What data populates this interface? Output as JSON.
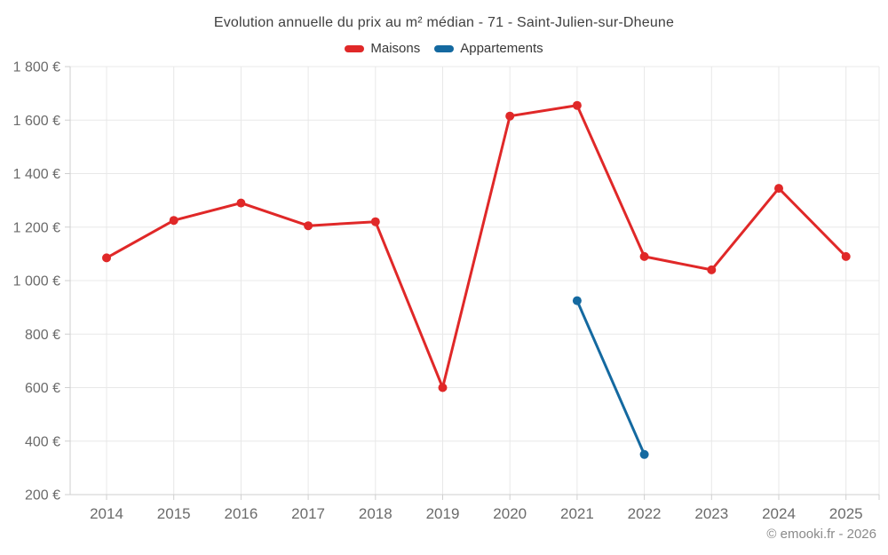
{
  "chart_data": {
    "type": "line",
    "title": "Evolution annuelle du prix au m² médian - 71 - Saint-Julien-sur-Dheune",
    "categories": [
      "2014",
      "2015",
      "2016",
      "2017",
      "2018",
      "2019",
      "2020",
      "2021",
      "2022",
      "2023",
      "2024",
      "2025"
    ],
    "series": [
      {
        "name": "Maisons",
        "color": "#e02828",
        "values": [
          1085,
          1225,
          1290,
          1205,
          1220,
          600,
          1615,
          1655,
          1090,
          1040,
          1345,
          1090
        ]
      },
      {
        "name": "Appartements",
        "color": "#1469a0",
        "values": [
          null,
          null,
          null,
          null,
          null,
          null,
          null,
          925,
          350,
          null,
          null,
          null
        ]
      }
    ],
    "ylim": [
      200,
      1800
    ],
    "ytick_step": 200,
    "ytick_suffix": "€",
    "grid": true,
    "legend_position": "top"
  },
  "footer": {
    "copyright": "© emooki.fr - 2026"
  },
  "colors": {
    "background": "#ffffff",
    "grid": "#e8e8e8",
    "axis": "#cfcfcf",
    "tick_text": "#6b6b6b",
    "title_text": "#404040",
    "legend_text": "#383838",
    "footer_text": "#8a8a8a"
  }
}
